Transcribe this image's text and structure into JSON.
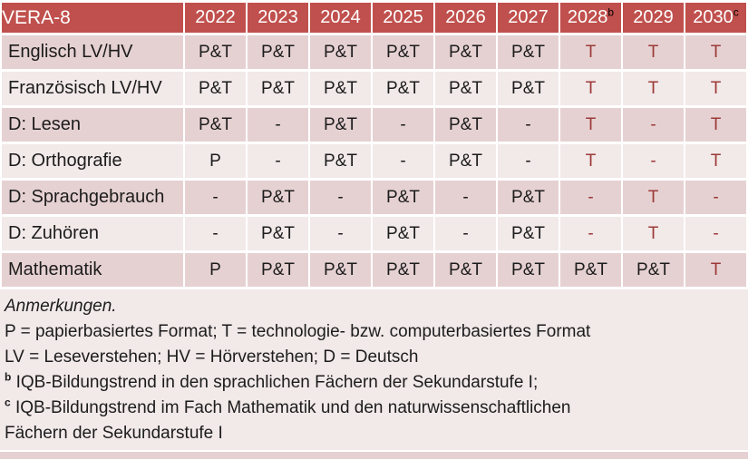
{
  "colors": {
    "header_bg": "#c0504d",
    "header_text": "#ffffff",
    "band_dark": "#e6d1d2",
    "band_light": "#f2e9e9",
    "body_text": "#1c1c1c",
    "tech_red": "#9c3a38",
    "grid_gap": "#ffffff"
  },
  "table": {
    "title": "VERA-8",
    "columns": [
      {
        "label": "2022",
        "sup": ""
      },
      {
        "label": "2023",
        "sup": ""
      },
      {
        "label": "2024",
        "sup": ""
      },
      {
        "label": "2025",
        "sup": ""
      },
      {
        "label": "2026",
        "sup": ""
      },
      {
        "label": "2027",
        "sup": ""
      },
      {
        "label": "2028",
        "sup": "b"
      },
      {
        "label": "2029",
        "sup": ""
      },
      {
        "label": "2030",
        "sup": "c"
      }
    ],
    "rows": [
      {
        "label": "Englisch LV/HV",
        "cells": [
          {
            "text": "P&T"
          },
          {
            "text": "P&T"
          },
          {
            "text": "P&T"
          },
          {
            "text": "P&T"
          },
          {
            "text": "P&T"
          },
          {
            "text": "P&T"
          },
          {
            "text": "T",
            "color": "#9c3a38"
          },
          {
            "text": "T",
            "color": "#9c3a38"
          },
          {
            "text": "T",
            "color": "#9c3a38"
          }
        ]
      },
      {
        "label": "Französisch LV/HV",
        "cells": [
          {
            "text": "P&T"
          },
          {
            "text": "P&T"
          },
          {
            "text": "P&T"
          },
          {
            "text": "P&T"
          },
          {
            "text": "P&T"
          },
          {
            "text": "P&T"
          },
          {
            "text": "T",
            "color": "#9c3a38"
          },
          {
            "text": "T",
            "color": "#9c3a38"
          },
          {
            "text": "T",
            "color": "#9c3a38"
          }
        ]
      },
      {
        "label": "D: Lesen",
        "cells": [
          {
            "text": "P&T"
          },
          {
            "text": "-"
          },
          {
            "text": "P&T"
          },
          {
            "text": "-"
          },
          {
            "text": "P&T"
          },
          {
            "text": "-"
          },
          {
            "text": "T",
            "color": "#9c3a38"
          },
          {
            "text": "-",
            "color": "#9c3a38"
          },
          {
            "text": "T",
            "color": "#9c3a38"
          }
        ]
      },
      {
        "label": "D: Orthografie",
        "cells": [
          {
            "text": "P"
          },
          {
            "text": "-"
          },
          {
            "text": "P&T"
          },
          {
            "text": "-"
          },
          {
            "text": "P&T"
          },
          {
            "text": "-"
          },
          {
            "text": "T",
            "color": "#9c3a38"
          },
          {
            "text": "-",
            "color": "#9c3a38"
          },
          {
            "text": "T",
            "color": "#9c3a38"
          }
        ]
      },
      {
        "label": "D: Sprachgebrauch",
        "cells": [
          {
            "text": "-"
          },
          {
            "text": "P&T"
          },
          {
            "text": "-"
          },
          {
            "text": "P&T"
          },
          {
            "text": "-"
          },
          {
            "text": "P&T"
          },
          {
            "text": "-",
            "color": "#9c3a38"
          },
          {
            "text": "T",
            "color": "#9c3a38"
          },
          {
            "text": "-",
            "color": "#9c3a38"
          }
        ]
      },
      {
        "label": "D: Zuhören",
        "cells": [
          {
            "text": "-"
          },
          {
            "text": "P&T"
          },
          {
            "text": "-"
          },
          {
            "text": "P&T"
          },
          {
            "text": "-"
          },
          {
            "text": "P&T"
          },
          {
            "text": "-",
            "color": "#9c3a38"
          },
          {
            "text": "T",
            "color": "#9c3a38"
          },
          {
            "text": "-",
            "color": "#9c3a38"
          }
        ]
      },
      {
        "label": "Mathematik",
        "cells": [
          {
            "text": "P"
          },
          {
            "text": "P&T"
          },
          {
            "text": "P&T"
          },
          {
            "text": "P&T"
          },
          {
            "text": "P&T"
          },
          {
            "text": "P&T"
          },
          {
            "text": "P&T"
          },
          {
            "text": "P&T"
          },
          {
            "text": "T",
            "color": "#9c3a38"
          }
        ]
      }
    ]
  },
  "notes": {
    "lines": [
      {
        "sup": "",
        "text": "Anmerkungen."
      },
      {
        "sup": "",
        "text": "P = papierbasiertes Format; T = technologie- bzw. computerbasiertes Format"
      },
      {
        "sup": "",
        "text": "LV = Leseverstehen; HV = Hörverstehen; D = Deutsch"
      },
      {
        "sup": "b",
        "text": " IQB-Bildungstrend in den sprachlichen Fächern der Sekundarstufe I;"
      },
      {
        "sup": "c",
        "text": " IQB-Bildungstrend im Fach Mathematik und den naturwissenschaftlichen"
      },
      {
        "sup": "",
        "text": "Fächern der Sekundarstufe I"
      }
    ]
  }
}
